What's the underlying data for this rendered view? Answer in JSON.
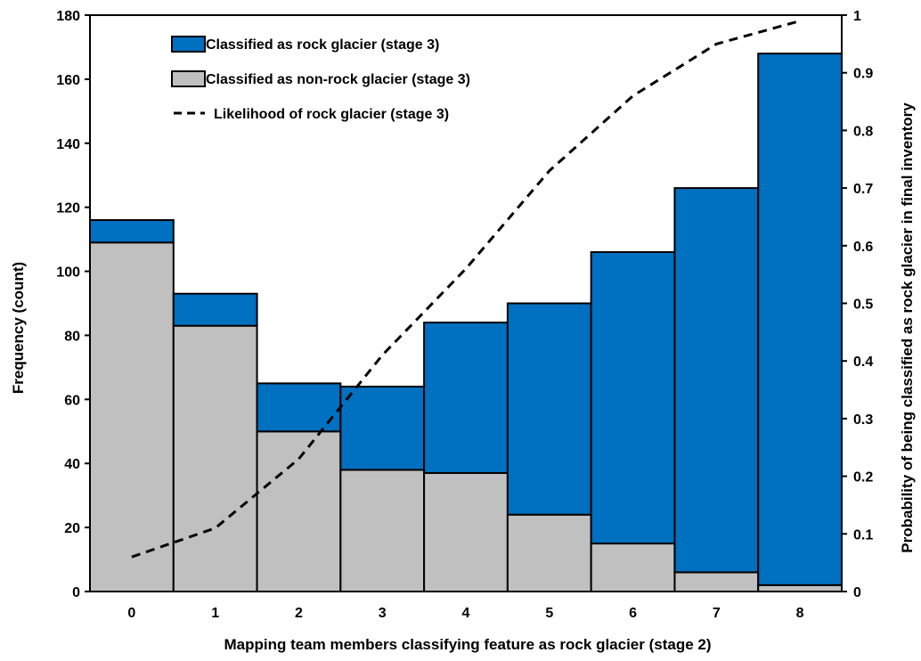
{
  "chart_data": {
    "type": "bar",
    "stacked": true,
    "categories": [
      "0",
      "1",
      "2",
      "3",
      "4",
      "5",
      "6",
      "7",
      "8"
    ],
    "series": [
      {
        "name": "Classified as non-rock glacier (stage 3)",
        "values": [
          109,
          83,
          50,
          38,
          37,
          24,
          15,
          6,
          2
        ],
        "color": "#c0c0c0"
      },
      {
        "name": "Classified as rock glacier (stage 3)",
        "values": [
          7,
          10,
          15,
          26,
          47,
          66,
          91,
          120,
          166
        ],
        "color": "#0070c0"
      }
    ],
    "line_series": {
      "name": "Likelihood of rock glacier (stage 3)",
      "axis": "right",
      "style": "dashed",
      "x": [
        0,
        1,
        2,
        3,
        4,
        5,
        6,
        7,
        8
      ],
      "values": [
        0.06,
        0.11,
        0.23,
        0.41,
        0.56,
        0.73,
        0.86,
        0.95,
        0.99
      ]
    },
    "xlabel": "Mapping team members classifying feature as rock glacier (stage 2)",
    "ylabel": "Frequency  (count)",
    "y2label": "Probability of being classified as rock glacier in final inventory",
    "ylim": [
      0,
      180
    ],
    "yticks": [
      "0",
      "20",
      "40",
      "60",
      "80",
      "100",
      "120",
      "140",
      "160",
      "180"
    ],
    "y2lim": [
      0,
      1
    ],
    "y2ticks": [
      "0",
      "0.1",
      "0.2",
      "0.3",
      "0.4",
      "0.5",
      "0.6",
      "0.7",
      "0.8",
      "0.9",
      "1"
    ],
    "legend": {
      "placement": "top-left",
      "entries": [
        "Classified as rock glacier (stage 3)",
        "Classified as non-rock glacier (stage 3)",
        "Likelihood of rock glacier (stage 3)"
      ]
    },
    "grid": false
  }
}
